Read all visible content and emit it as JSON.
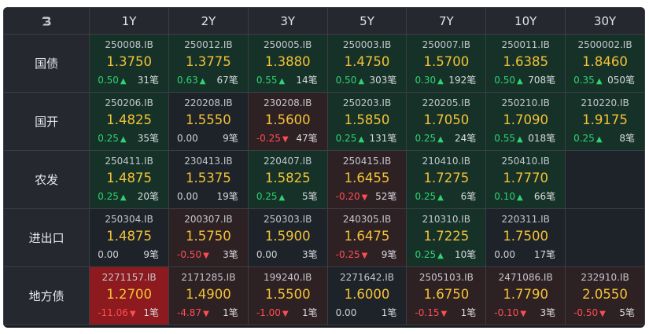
{
  "logo_icon": "brand-b-icon",
  "terms": [
    "1Y",
    "2Y",
    "3Y",
    "5Y",
    "7Y",
    "10Y",
    "30Y"
  ],
  "rows": [
    {
      "label": "国债",
      "cells": [
        {
          "code": "250008.IB",
          "yield": "1.3750",
          "change": "0.50",
          "dir": "up",
          "count": "31笔"
        },
        {
          "code": "250012.IB",
          "yield": "1.3775",
          "change": "0.63",
          "dir": "up",
          "count": "67笔"
        },
        {
          "code": "250005.IB",
          "yield": "1.3880",
          "change": "0.55",
          "dir": "up",
          "count": "14笔"
        },
        {
          "code": "250003.IB",
          "yield": "1.4750",
          "change": "0.50",
          "dir": "up",
          "count": "303笔"
        },
        {
          "code": "250007.IB",
          "yield": "1.5700",
          "change": "0.30",
          "dir": "up",
          "count": "192笔"
        },
        {
          "code": "250011.IB",
          "yield": "1.6385",
          "change": "0.50",
          "dir": "up",
          "count": "708笔"
        },
        {
          "code": "2500002.IB",
          "yield": "1.8460",
          "change": "0.35",
          "dir": "up",
          "count": "050笔"
        }
      ]
    },
    {
      "label": "国开",
      "cells": [
        {
          "code": "250206.IB",
          "yield": "1.4825",
          "change": "0.25",
          "dir": "up",
          "count": "35笔"
        },
        {
          "code": "220208.IB",
          "yield": "1.5550",
          "change": "0.00",
          "dir": "flat",
          "count": "9笔"
        },
        {
          "code": "230208.IB",
          "yield": "1.5600",
          "change": "-0.25",
          "dir": "down",
          "count": "47笔"
        },
        {
          "code": "250203.IB",
          "yield": "1.5850",
          "change": "0.25",
          "dir": "up",
          "count": "131笔"
        },
        {
          "code": "220205.IB",
          "yield": "1.7050",
          "change": "0.25",
          "dir": "up",
          "count": "24笔"
        },
        {
          "code": "250210.IB",
          "yield": "1.7090",
          "change": "0.55",
          "dir": "up",
          "count": "018笔"
        },
        {
          "code": "210220.IB",
          "yield": "1.9175",
          "change": "0.25",
          "dir": "up",
          "count": "8笔"
        }
      ]
    },
    {
      "label": "农发",
      "cells": [
        {
          "code": "250411.IB",
          "yield": "1.4875",
          "change": "0.25",
          "dir": "up",
          "count": "20笔"
        },
        {
          "code": "230413.IB",
          "yield": "1.5375",
          "change": "0.00",
          "dir": "flat",
          "count": "19笔"
        },
        {
          "code": "220407.IB",
          "yield": "1.5825",
          "change": "0.25",
          "dir": "up",
          "count": "5笔"
        },
        {
          "code": "250415.IB",
          "yield": "1.6455",
          "change": "-0.20",
          "dir": "down",
          "count": "52笔"
        },
        {
          "code": "210410.IB",
          "yield": "1.7275",
          "change": "0.25",
          "dir": "up",
          "count": "6笔"
        },
        {
          "code": "250410.IB",
          "yield": "1.7770",
          "change": "0.10",
          "dir": "up",
          "count": "66笔"
        },
        null
      ]
    },
    {
      "label": "进出口",
      "cells": [
        {
          "code": "250304.IB",
          "yield": "1.4875",
          "change": "0.00",
          "dir": "flat",
          "count": "9笔"
        },
        {
          "code": "200307.IB",
          "yield": "1.5750",
          "change": "-0.50",
          "dir": "down",
          "count": "3笔"
        },
        {
          "code": "250303.IB",
          "yield": "1.5900",
          "change": "0.00",
          "dir": "flat",
          "count": "3笔"
        },
        {
          "code": "240305.IB",
          "yield": "1.6475",
          "change": "-0.25",
          "dir": "down",
          "count": "9笔"
        },
        {
          "code": "210310.IB",
          "yield": "1.7225",
          "change": "0.25",
          "dir": "up",
          "count": "10笔"
        },
        {
          "code": "220311.IB",
          "yield": "1.7500",
          "change": "0.00",
          "dir": "flat",
          "count": "17笔"
        },
        null
      ]
    },
    {
      "label": "地方债",
      "cells": [
        {
          "code": "2271157.IB",
          "yield": "1.2700",
          "change": "-11.06",
          "dir": "down",
          "count": "1笔",
          "strong": true
        },
        {
          "code": "2171285.IB",
          "yield": "1.4900",
          "change": "-4.87",
          "dir": "down",
          "count": "1笔"
        },
        {
          "code": "199240.IB",
          "yield": "1.5500",
          "change": "-1.00",
          "dir": "down",
          "count": "1笔"
        },
        {
          "code": "2271642.IB",
          "yield": "1.6000",
          "change": "0.00",
          "dir": "flat",
          "count": "1笔"
        },
        {
          "code": "2505103.IB",
          "yield": "1.6750",
          "change": "-0.15",
          "dir": "down",
          "count": "1笔"
        },
        {
          "code": "2471086.IB",
          "yield": "1.7790",
          "change": "-0.10",
          "dir": "down",
          "count": "3笔"
        },
        {
          "code": "232910.IB",
          "yield": "2.0550",
          "change": "-0.50",
          "dir": "down",
          "count": "5笔"
        }
      ]
    }
  ],
  "colors": {
    "up": "#2fd372",
    "down": "#ff4d52",
    "yield": "#f4c237"
  }
}
